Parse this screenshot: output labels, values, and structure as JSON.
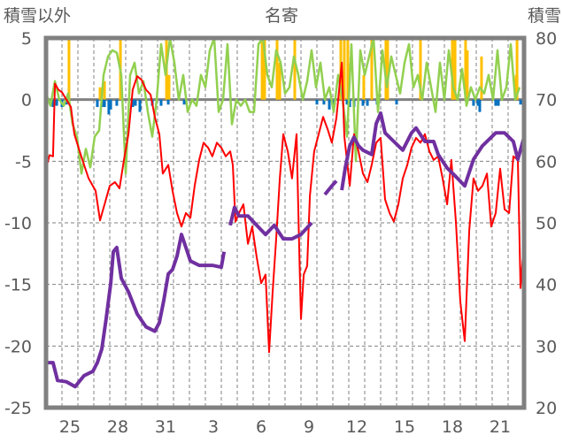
{
  "chart_data": {
    "type": "line",
    "title": "名寄",
    "ylabel_left": "積雪以外",
    "ylabel_right": "積雪",
    "xlim_days": [
      0,
      30
    ],
    "ylim_left": [
      -25,
      5
    ],
    "ylim_right": [
      20,
      80
    ],
    "left_ticks": [
      "5",
      "0",
      "-5",
      "-10",
      "-15",
      "-20",
      "-25"
    ],
    "left_tick_values": [
      5,
      0,
      -5,
      -10,
      -15,
      -20,
      -25
    ],
    "right_ticks": [
      "80",
      "70",
      "60",
      "50",
      "40",
      "30",
      "20"
    ],
    "right_tick_values": [
      80,
      70,
      60,
      50,
      40,
      30,
      20
    ],
    "x_tick_labels": [
      "25",
      "28",
      "31",
      "3",
      "6",
      "9",
      "12",
      "15",
      "18",
      "21"
    ],
    "x_tick_day_index": [
      1,
      4,
      7,
      10,
      13,
      16,
      19,
      22,
      25,
      28
    ],
    "grid": true,
    "colors": {
      "red": "#ff0000",
      "green": "#92d050",
      "purple": "#7030a0",
      "yellow": "#ffc000",
      "blue": "#0070c0",
      "frame": "#808080"
    },
    "series": [
      {
        "name": "red",
        "axis": "left",
        "points": [
          [
            0,
            -5.6
          ],
          [
            0.22,
            -4.5
          ],
          [
            0.44,
            -4.6
          ],
          [
            0.56,
            1.3
          ],
          [
            0.78,
            0.8
          ],
          [
            1,
            0.6
          ],
          [
            1.28,
            0
          ],
          [
            1.56,
            -0.6
          ],
          [
            1.78,
            -2.8
          ],
          [
            2.11,
            -4.2
          ],
          [
            2.39,
            -5.3
          ],
          [
            2.67,
            -6.4
          ],
          [
            3.11,
            -7.4
          ],
          [
            3.39,
            -9.8
          ],
          [
            3.67,
            -8.5
          ],
          [
            4,
            -7
          ],
          [
            4.33,
            -6.7
          ],
          [
            4.61,
            -7.2
          ],
          [
            4.89,
            -4.9
          ],
          [
            5.17,
            -2.8
          ],
          [
            5.44,
            0.8
          ],
          [
            5.72,
            1.9
          ],
          [
            6,
            1.6
          ],
          [
            6.28,
            0.8
          ],
          [
            6.56,
            0.4
          ],
          [
            6.83,
            -1.4
          ],
          [
            7.11,
            -2.8
          ],
          [
            7.33,
            -6
          ],
          [
            7.67,
            -5.3
          ],
          [
            7.94,
            -7.4
          ],
          [
            8.22,
            -9.2
          ],
          [
            8.5,
            -10.3
          ],
          [
            8.78,
            -9.2
          ],
          [
            9.06,
            -9.6
          ],
          [
            9.33,
            -7
          ],
          [
            9.61,
            -4.9
          ],
          [
            9.89,
            -3.5
          ],
          [
            10.17,
            -3.9
          ],
          [
            10.44,
            -4.6
          ],
          [
            10.72,
            -3.5
          ],
          [
            11,
            -3.9
          ],
          [
            11.28,
            -4.6
          ],
          [
            11.56,
            -4.2
          ],
          [
            11.72,
            -5.3
          ],
          [
            11.89,
            -9.9
          ],
          [
            12.11,
            -9.2
          ],
          [
            12.39,
            -8.5
          ],
          [
            12.67,
            -11.7
          ],
          [
            12.94,
            -10.3
          ],
          [
            13.22,
            -12.8
          ],
          [
            13.5,
            -14.9
          ],
          [
            13.78,
            -14.2
          ],
          [
            14,
            -20.5
          ],
          [
            14.22,
            -15.6
          ],
          [
            14.44,
            -11.4
          ],
          [
            14.67,
            -6.4
          ],
          [
            14.89,
            -2.8
          ],
          [
            15.17,
            -4.2
          ],
          [
            15.44,
            -6.4
          ],
          [
            15.72,
            -2.8
          ],
          [
            15.89,
            -12.1
          ],
          [
            16,
            -17.8
          ],
          [
            16.17,
            -14.2
          ],
          [
            16.39,
            -13.5
          ],
          [
            16.56,
            -7.8
          ],
          [
            16.83,
            -4.2
          ],
          [
            17.11,
            -2.8
          ],
          [
            17.39,
            -1.4
          ],
          [
            17.67,
            -2.4
          ],
          [
            17.94,
            -3.5
          ],
          [
            18.22,
            -1.5
          ],
          [
            18.56,
            3
          ],
          [
            18.72,
            -3
          ],
          [
            19.06,
            -7
          ],
          [
            19.33,
            -2.8
          ],
          [
            19.61,
            -4.2
          ],
          [
            19.89,
            -6
          ],
          [
            20.17,
            -6.7
          ],
          [
            20.44,
            -5.3
          ],
          [
            20.72,
            -3.5
          ],
          [
            21,
            -3.1
          ],
          [
            21.28,
            -8.1
          ],
          [
            21.56,
            -9.2
          ],
          [
            21.83,
            -9.9
          ],
          [
            22.11,
            -8.5
          ],
          [
            22.39,
            -6.4
          ],
          [
            22.67,
            -5.3
          ],
          [
            22.94,
            -3.9
          ],
          [
            23.22,
            -3.1
          ],
          [
            23.5,
            -3.5
          ],
          [
            23.78,
            -2.8
          ],
          [
            24.06,
            -4.2
          ],
          [
            24.33,
            -4.9
          ],
          [
            24.61,
            -4.6
          ],
          [
            24.89,
            -6.4
          ],
          [
            25.17,
            -8.5
          ],
          [
            25.44,
            -4.9
          ],
          [
            25.72,
            -9.9
          ],
          [
            26,
            -16.4
          ],
          [
            26.28,
            -19.6
          ],
          [
            26.56,
            -10.6
          ],
          [
            26.83,
            -6.4
          ],
          [
            27.11,
            -7.4
          ],
          [
            27.39,
            -7
          ],
          [
            27.67,
            -6
          ],
          [
            27.94,
            -10.3
          ],
          [
            28.22,
            -9.2
          ],
          [
            28.5,
            -5.6
          ],
          [
            28.78,
            -8.9
          ],
          [
            29.06,
            -9.2
          ],
          [
            29.33,
            -4.6
          ],
          [
            29.61,
            -4.9
          ],
          [
            29.78,
            -15.3
          ],
          [
            30,
            -11.4
          ]
        ]
      },
      {
        "name": "green",
        "axis": "left",
        "x_start": 0,
        "x_step_days": 0.2778,
        "values": [
          0.5,
          -0.5,
          1.5,
          0,
          -0.5,
          0.5,
          -2,
          -3,
          -6,
          -4,
          -5.5,
          -3,
          -2.5,
          2,
          3.5,
          4,
          3.8,
          2,
          -6,
          2,
          3,
          0.5,
          1.5,
          -1,
          -3,
          0,
          4.5,
          2,
          5,
          3,
          0,
          2,
          -1,
          0,
          -0.5,
          2,
          1,
          4,
          5,
          -1,
          0,
          4.5,
          -2,
          0,
          -0.5,
          0,
          -1,
          -1,
          4.5,
          5,
          2,
          1,
          4,
          3,
          0.5,
          1,
          3.5,
          2,
          0,
          1.5,
          4,
          1,
          3,
          0,
          1,
          -1,
          2,
          0,
          -3,
          4.5,
          -5,
          4,
          2,
          3.5,
          5,
          -1,
          4,
          1,
          3.5,
          2,
          0.5,
          3,
          4.5,
          1,
          2,
          0,
          3,
          1,
          -1,
          3,
          0,
          4,
          1,
          0,
          2.5,
          -0.5,
          1,
          0,
          1,
          0.5,
          2,
          0,
          4,
          0,
          1,
          4.5,
          0,
          1
        ]
      },
      {
        "name": "purple",
        "axis": "right",
        "points": [
          [
            0,
            27.3
          ],
          [
            0.44,
            27.3
          ],
          [
            0.72,
            24.4
          ],
          [
            1.28,
            24.2
          ],
          [
            1.83,
            23.4
          ],
          [
            2.39,
            25.2
          ],
          [
            2.94,
            25.9
          ],
          [
            3.22,
            27.3
          ],
          [
            3.5,
            29.5
          ],
          [
            3.78,
            34.5
          ],
          [
            4.06,
            40.2
          ],
          [
            4.22,
            45.3
          ],
          [
            4.44,
            46
          ],
          [
            4.72,
            41
          ],
          [
            5.17,
            38.8
          ],
          [
            5.72,
            35.2
          ],
          [
            6.28,
            33.1
          ],
          [
            6.83,
            32.4
          ],
          [
            7.11,
            33.8
          ],
          [
            7.39,
            37.4
          ],
          [
            7.67,
            41.7
          ],
          [
            7.94,
            42.4
          ],
          [
            8.22,
            44.6
          ],
          [
            8.5,
            48.1
          ],
          [
            8.78,
            46
          ],
          [
            9.06,
            43.8
          ],
          [
            9.61,
            43.1
          ],
          [
            10.44,
            43.1
          ],
          [
            11,
            42.8
          ],
          [
            11.17,
            45.3
          ],
          null,
          [
            11.56,
            49.6
          ],
          [
            11.83,
            52.5
          ],
          [
            12.11,
            51.1
          ],
          [
            12.67,
            51.1
          ],
          [
            13.22,
            49.6
          ],
          [
            13.78,
            48.1
          ],
          [
            14.33,
            49.6
          ],
          [
            14.89,
            47.4
          ],
          [
            15.44,
            47.4
          ],
          [
            16,
            48.1
          ],
          [
            16.28,
            48.9
          ],
          [
            16.67,
            50
          ],
          null,
          [
            17.5,
            54.6
          ],
          [
            17.94,
            56
          ],
          [
            18.22,
            56.8
          ],
          null,
          [
            18.56,
            55.3
          ],
          [
            18.78,
            58.9
          ],
          [
            19.06,
            62.5
          ],
          [
            19.33,
            63.9
          ],
          [
            19.61,
            62.5
          ],
          [
            19.89,
            61.8
          ],
          [
            20.44,
            61.1
          ],
          [
            20.72,
            66.1
          ],
          [
            21,
            67.8
          ],
          [
            21.28,
            64.6
          ],
          [
            21.83,
            63.2
          ],
          [
            22.39,
            61.8
          ],
          [
            22.94,
            64.6
          ],
          [
            23.22,
            65.4
          ],
          [
            23.78,
            63.2
          ],
          [
            24.33,
            63.2
          ],
          [
            24.61,
            61.1
          ],
          [
            25.17,
            58.9
          ],
          [
            25.72,
            57.5
          ],
          [
            26.28,
            56
          ],
          [
            26.83,
            60.3
          ],
          [
            27.39,
            62.5
          ],
          [
            28.22,
            64.6
          ],
          [
            28.78,
            64.6
          ],
          [
            29.33,
            63.2
          ],
          [
            29.61,
            60.3
          ],
          [
            30,
            63.9
          ]
        ]
      },
      {
        "name": "yellow-bars",
        "axis": "left",
        "type": "bar",
        "points": [
          [
            1.44,
            5
          ],
          [
            3.39,
            1
          ],
          [
            3.67,
            1.5
          ],
          [
            4.67,
            5
          ],
          [
            7.56,
            5
          ],
          [
            7.72,
            2
          ],
          [
            13.56,
            5
          ],
          [
            13.72,
            5
          ],
          [
            14.5,
            5
          ],
          [
            14.67,
            3
          ],
          [
            15.61,
            5
          ],
          [
            18.5,
            5
          ],
          [
            18.72,
            5
          ],
          [
            18.94,
            5
          ],
          [
            19.94,
            2
          ],
          [
            20.44,
            5
          ],
          [
            21.33,
            5
          ],
          [
            21.44,
            5
          ],
          [
            23.5,
            5
          ],
          [
            25.5,
            5
          ],
          [
            25.67,
            5
          ],
          [
            26.33,
            5
          ],
          [
            26.44,
            4
          ],
          [
            27.33,
            3.5
          ],
          [
            29.5,
            2
          ],
          [
            29.56,
            5
          ]
        ]
      },
      {
        "name": "blue-bars",
        "axis": "left",
        "type": "bar",
        "points": [
          [
            0.44,
            -0.6
          ],
          [
            0.67,
            -0.5
          ],
          [
            1,
            -0.6
          ],
          [
            1.28,
            -0.4
          ],
          [
            3.22,
            -0.6
          ],
          [
            3.5,
            -0.6
          ],
          [
            3.67,
            -0.6
          ],
          [
            3.94,
            -1.2
          ],
          [
            4.06,
            -0.8
          ],
          [
            4.44,
            -0.5
          ],
          [
            5.44,
            -0.6
          ],
          [
            5.61,
            -0.5
          ],
          [
            5.89,
            -1
          ],
          [
            6.67,
            -0.5
          ],
          [
            7.22,
            -0.5
          ],
          [
            7.67,
            -0.4
          ],
          [
            8.67,
            -0.4
          ],
          [
            17,
            -0.4
          ],
          [
            17.44,
            -0.4
          ],
          [
            17.78,
            -0.8
          ],
          [
            18.11,
            -0.4
          ],
          [
            18.89,
            -0.4
          ],
          [
            19.06,
            -0.6
          ],
          [
            19.33,
            -0.6
          ],
          [
            19.89,
            -0.5
          ],
          [
            20.17,
            -0.5
          ],
          [
            20.78,
            -0.4
          ],
          [
            22,
            -0.4
          ],
          [
            26.83,
            -0.5
          ],
          [
            27.11,
            -0.5
          ],
          [
            27.22,
            -1
          ],
          [
            28.22,
            -0.5
          ],
          [
            28.39,
            -0.5
          ],
          [
            29.78,
            -0.4
          ]
        ]
      }
    ]
  }
}
